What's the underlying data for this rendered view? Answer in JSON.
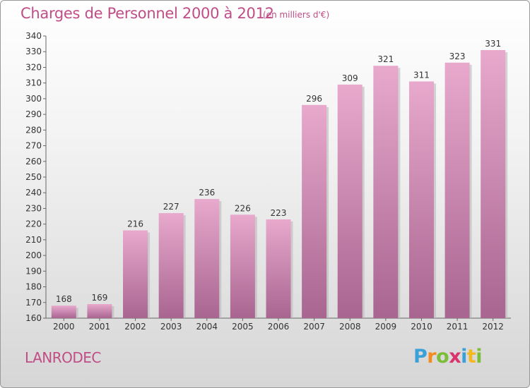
{
  "chart_data": {
    "type": "bar",
    "title": "Charges de Personnel 2000 à 2012",
    "unit_note": "(en milliers d'€)",
    "categories": [
      "2000",
      "2001",
      "2002",
      "2003",
      "2004",
      "2005",
      "2006",
      "2007",
      "2008",
      "2009",
      "2010",
      "2011",
      "2012"
    ],
    "values": [
      168,
      169,
      216,
      227,
      236,
      226,
      223,
      296,
      309,
      321,
      311,
      323,
      331
    ],
    "ylim": [
      160,
      340
    ],
    "yticks": [
      160,
      170,
      180,
      190,
      200,
      210,
      220,
      230,
      240,
      250,
      260,
      270,
      280,
      290,
      300,
      310,
      320,
      330,
      340
    ],
    "grid": false,
    "bar_color_top": "#e8a9cd",
    "bar_color_bottom": "#a86590",
    "title_color": "#c04d86"
  },
  "footer": {
    "commune": "LANRODEC",
    "logo_letters": [
      "P",
      "r",
      "o",
      "x",
      "i",
      "t",
      "i"
    ],
    "logo_colors": [
      "#3aa0d8",
      "#f28c1e",
      "#7cbd3a",
      "#d9346e",
      "#3aa0d8",
      "#f2b81e",
      "#7cbd3a"
    ]
  }
}
